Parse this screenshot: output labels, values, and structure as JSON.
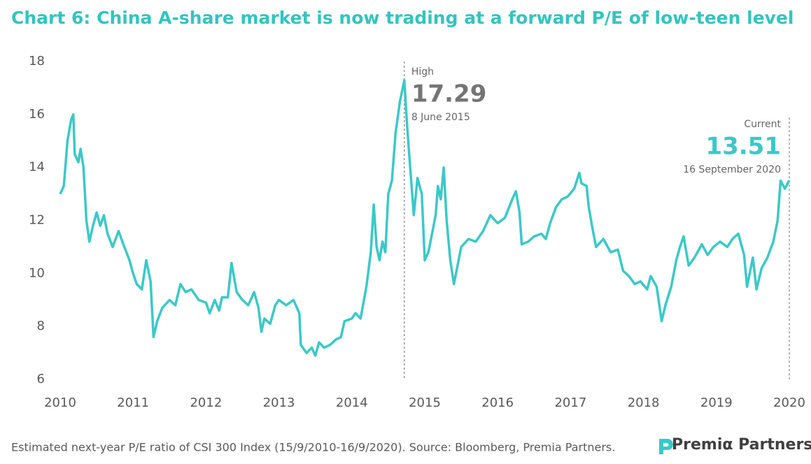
{
  "chart_data": {
    "type": "line",
    "title": "Chart 6: China A-share market is now trading at a forward P/E of low-teen level",
    "footnote": "Estimated next-year P/E ratio of CSI 300 Index (15/9/2010-16/9/2020). Source: Bloomberg, Premia Partners.",
    "logo": "Premiα Partners",
    "color": "#3cc8c8",
    "xlim": [
      2010,
      2020
    ],
    "xticks": [
      2010,
      2011,
      2012,
      2013,
      2014,
      2015,
      2016,
      2017,
      2018,
      2019,
      2020
    ],
    "ylim": [
      6,
      18
    ],
    "yticks": [
      6,
      8,
      10,
      12,
      14,
      16,
      18
    ],
    "annotations": [
      {
        "label": "High",
        "value": 17.29,
        "date": "8 June 2015",
        "x": 2014.72
      },
      {
        "label": "Current",
        "value": 13.51,
        "date": "16 September 2020",
        "x": 2020
      }
    ],
    "x": [
      2010.0,
      2010.05,
      2010.1,
      2010.15,
      2010.18,
      2010.2,
      2010.25,
      2010.28,
      2010.32,
      2010.36,
      2010.4,
      2010.45,
      2010.5,
      2010.55,
      2010.6,
      2010.65,
      2010.72,
      2010.8,
      2010.88,
      2010.95,
      2011.0,
      2011.05,
      2011.12,
      2011.18,
      2011.24,
      2011.28,
      2011.33,
      2011.4,
      2011.5,
      2011.58,
      2011.65,
      2011.72,
      2011.8,
      2011.9,
      2012.0,
      2012.05,
      2012.12,
      2012.18,
      2012.22,
      2012.3,
      2012.35,
      2012.42,
      2012.5,
      2012.58,
      2012.66,
      2012.72,
      2012.76,
      2012.8,
      2012.88,
      2012.95,
      2013.0,
      2013.1,
      2013.2,
      2013.28,
      2013.3,
      2013.38,
      2013.45,
      2013.5,
      2013.55,
      2013.62,
      2013.7,
      2013.78,
      2013.85,
      2013.9,
      2014.0,
      2014.05,
      2014.12,
      2014.2,
      2014.26,
      2014.3,
      2014.34,
      2014.38,
      2014.42,
      2014.46,
      2014.5,
      2014.55,
      2014.6,
      2014.66,
      2014.72,
      2014.76,
      2014.8,
      2014.85,
      2014.9,
      2014.96,
      2015.0,
      2015.05,
      2015.1,
      2015.15,
      2015.18,
      2015.22,
      2015.26,
      2015.3,
      2015.35,
      2015.4,
      2015.45,
      2015.5,
      2015.6,
      2015.7,
      2015.8,
      2015.9,
      2016.0,
      2016.1,
      2016.2,
      2016.25,
      2016.3,
      2016.33,
      2016.42,
      2016.5,
      2016.6,
      2016.66,
      2016.72,
      2016.8,
      2016.88,
      2016.96,
      2017.05,
      2017.12,
      2017.15,
      2017.22,
      2017.25,
      2017.3,
      2017.35,
      2017.45,
      2017.55,
      2017.65,
      2017.72,
      2017.8,
      2017.88,
      2017.96,
      2018.05,
      2018.1,
      2018.18,
      2018.25,
      2018.3,
      2018.38,
      2018.45,
      2018.5,
      2018.55,
      2018.62,
      2018.7,
      2018.8,
      2018.88,
      2018.96,
      2019.05,
      2019.15,
      2019.22,
      2019.3,
      2019.38,
      2019.42,
      2019.5,
      2019.55,
      2019.62,
      2019.7,
      2019.78,
      2019.84,
      2019.88,
      2019.94,
      2020.0
    ],
    "series": [
      {
        "name": "CSI 300 forward P/E",
        "color": "#3cc8c8",
        "values": [
          13.0,
          13.3,
          15.0,
          15.8,
          16.0,
          14.5,
          14.2,
          14.7,
          14.0,
          12.0,
          11.2,
          11.8,
          12.3,
          11.8,
          12.2,
          11.5,
          11.0,
          11.6,
          11.0,
          10.5,
          10.0,
          9.6,
          9.4,
          10.5,
          9.7,
          7.6,
          8.2,
          8.7,
          9.0,
          8.8,
          9.6,
          9.3,
          9.4,
          9.0,
          8.9,
          8.5,
          9.0,
          8.6,
          9.1,
          9.1,
          10.4,
          9.3,
          9.0,
          8.8,
          9.3,
          8.7,
          7.8,
          8.3,
          8.1,
          8.8,
          9.0,
          8.8,
          9.0,
          8.5,
          7.3,
          7.0,
          7.2,
          6.9,
          7.4,
          7.2,
          7.3,
          7.5,
          7.6,
          8.2,
          8.3,
          8.5,
          8.3,
          9.5,
          10.8,
          12.6,
          11.0,
          10.5,
          11.2,
          10.8,
          13.0,
          13.5,
          15.3,
          16.5,
          17.29,
          15.5,
          14.0,
          12.2,
          13.6,
          13.0,
          10.5,
          10.8,
          11.5,
          12.2,
          13.3,
          12.8,
          14.0,
          12.0,
          10.5,
          9.6,
          10.3,
          11.0,
          11.3,
          11.2,
          11.6,
          12.2,
          11.9,
          12.1,
          12.8,
          13.1,
          12.3,
          11.1,
          11.2,
          11.4,
          11.5,
          11.3,
          11.9,
          12.5,
          12.8,
          12.9,
          13.2,
          13.8,
          13.4,
          13.3,
          12.5,
          11.7,
          11.0,
          11.3,
          10.8,
          10.9,
          10.1,
          9.9,
          9.6,
          9.7,
          9.4,
          9.9,
          9.5,
          8.2,
          8.8,
          9.5,
          10.5,
          11.0,
          11.4,
          10.3,
          10.6,
          11.1,
          10.7,
          11.0,
          11.2,
          11.0,
          11.3,
          11.5,
          10.7,
          9.5,
          10.6,
          9.4,
          10.2,
          10.6,
          11.2,
          12.0,
          13.5,
          13.2,
          13.51
        ]
      }
    ]
  }
}
